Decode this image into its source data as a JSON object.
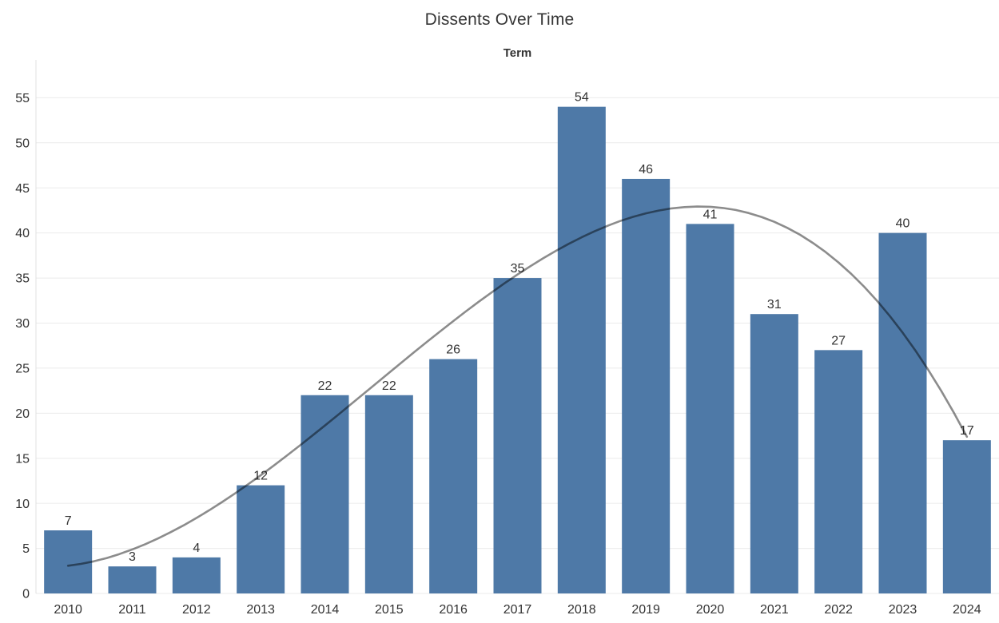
{
  "header": {
    "title": "Dissents Over Time",
    "axis_title": "Term"
  },
  "chart_data": {
    "type": "bar",
    "title": "Dissents Over Time",
    "xlabel": "Term",
    "ylabel": "",
    "categories": [
      "2010",
      "2011",
      "2012",
      "2013",
      "2014",
      "2015",
      "2016",
      "2017",
      "2018",
      "2019",
      "2020",
      "2021",
      "2022",
      "2023",
      "2024"
    ],
    "values": [
      7,
      3,
      4,
      12,
      22,
      22,
      26,
      35,
      54,
      46,
      41,
      31,
      27,
      40,
      17
    ],
    "data_labels_shown": true,
    "yticks": [
      0,
      5,
      10,
      15,
      20,
      25,
      30,
      35,
      40,
      45,
      50,
      55
    ],
    "ylim": [
      0,
      59.2
    ],
    "grid": true,
    "legend_position": "none",
    "trend_line": {
      "type": "polynomial",
      "degree": 3,
      "coefficients": [
        3.0773,
        0.8041,
        1.0734,
        -0.07556
      ],
      "x_domain_index": [
        0,
        14
      ]
    },
    "colors": {
      "bar": "#4e79a7",
      "text": "#333333",
      "title": "#363636",
      "gridline": "#ebebeb",
      "axis_line": "#e0e0e0",
      "trend": "#000000",
      "trend_opacity": 0.45
    }
  }
}
